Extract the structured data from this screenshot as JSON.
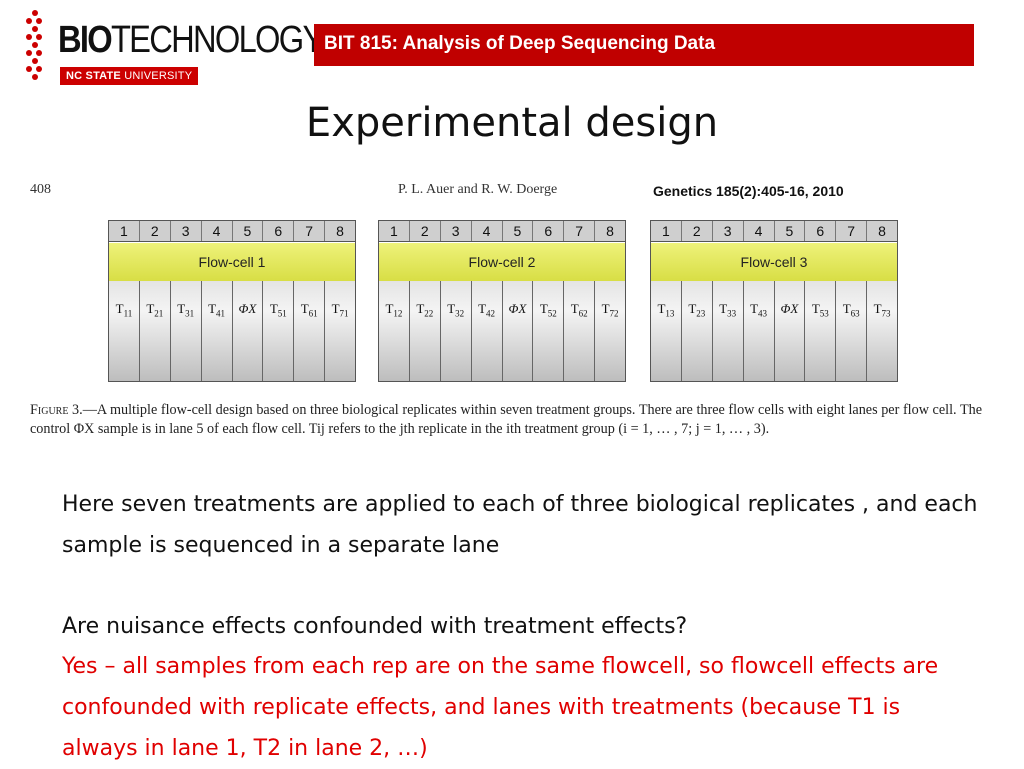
{
  "logo": {
    "word_bold": "BIO",
    "word_light": "TECHNOLOGY",
    "badge_bold": "NC STATE",
    "badge_light": " UNIVERSITY",
    "accent": "#cc0000"
  },
  "banner": {
    "text": "BIT 815: Analysis of Deep Sequencing Data",
    "color": "#c00000"
  },
  "title": "Experimental design",
  "figure": {
    "page_number": "408",
    "authors": "P. L. Auer and R. W. Doerge",
    "citation": "Genetics 185(2):405-16, 2010",
    "lanes": [
      "1",
      "2",
      "3",
      "4",
      "5",
      "6",
      "7",
      "8"
    ],
    "flowcells": [
      {
        "label": "Flow-cell 1",
        "samples": [
          [
            "T",
            "11"
          ],
          [
            "T",
            "21"
          ],
          [
            "T",
            "31"
          ],
          [
            "T",
            "41"
          ],
          [
            "ΦX",
            ""
          ],
          [
            "T",
            "51"
          ],
          [
            "T",
            "61"
          ],
          [
            "T",
            "71"
          ]
        ]
      },
      {
        "label": "Flow-cell 2",
        "samples": [
          [
            "T",
            "12"
          ],
          [
            "T",
            "22"
          ],
          [
            "T",
            "32"
          ],
          [
            "T",
            "42"
          ],
          [
            "ΦX",
            ""
          ],
          [
            "T",
            "52"
          ],
          [
            "T",
            "62"
          ],
          [
            "T",
            "72"
          ]
        ]
      },
      {
        "label": "Flow-cell 3",
        "samples": [
          [
            "T",
            "13"
          ],
          [
            "T",
            "23"
          ],
          [
            "T",
            "33"
          ],
          [
            "T",
            "43"
          ],
          [
            "ΦX",
            ""
          ],
          [
            "T",
            "53"
          ],
          [
            "T",
            "63"
          ],
          [
            "T",
            "73"
          ]
        ]
      }
    ],
    "caption_label": "Figure 3.",
    "caption_text": "—A multiple flow-cell design based on three biological replicates within seven treatment groups. There are three flow cells with eight lanes per flow cell. The control ΦX sample is in lane 5 of each flow cell. Tij refers to the jth replicate in the ith treatment group (i = 1, … , 7; j = 1, … , 3)."
  },
  "body": {
    "paragraph1": "Here seven treatments are applied to each of three biological replicates , and each sample is sequenced in a separate lane",
    "question": "Are nuisance effects confounded with treatment effects?",
    "answer": "Yes – all samples from each rep are on the same flowcell, so flowcell effects are confounded with replicate effects, and lanes with treatments (because T1 is always in lane 1, T2 in lane 2, …)",
    "answer_color": "#e00000"
  }
}
